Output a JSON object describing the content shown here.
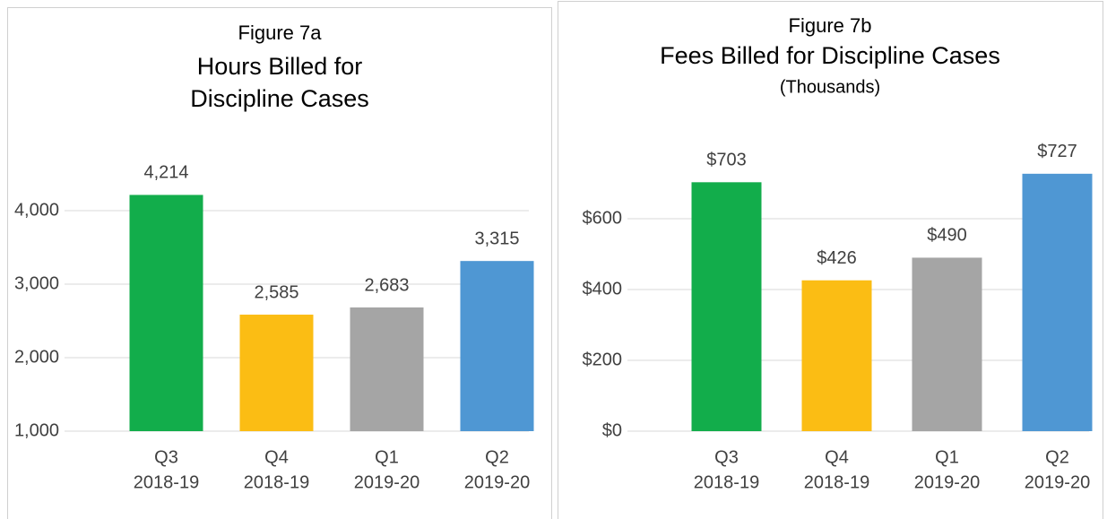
{
  "chart_data": [
    {
      "type": "bar",
      "title": "Figure 7a",
      "subtitle": [
        "Hours Billed for",
        "Discipline Cases"
      ],
      "categories": [
        [
          "Q3",
          "2018-19"
        ],
        [
          "Q4",
          "2018-19"
        ],
        [
          "Q1",
          "2019-20"
        ],
        [
          "Q2",
          "2019-20"
        ]
      ],
      "values": [
        4214,
        2585,
        2683,
        3315
      ],
      "value_labels": [
        "4,214",
        "2,585",
        "2,683",
        "3,315"
      ],
      "colors": [
        "#12ad4b",
        "#fbbd14",
        "#a5a5a5",
        "#4f97d3"
      ],
      "ylim": [
        1000,
        4500
      ],
      "yticks": [
        {
          "value": 1000,
          "label": "1,000"
        },
        {
          "value": 2000,
          "label": "2,000"
        },
        {
          "value": 3000,
          "label": "3,000"
        },
        {
          "value": 4000,
          "label": "4,000"
        }
      ],
      "grid": true
    },
    {
      "type": "bar",
      "title": "Figure 7b",
      "subtitle": [
        "Fees Billed for Discipline Cases"
      ],
      "note": "(Thousands)",
      "categories": [
        [
          "Q3",
          "2018-19"
        ],
        [
          "Q4",
          "2018-19"
        ],
        [
          "Q1",
          "2019-20"
        ],
        [
          "Q2",
          "2019-20"
        ]
      ],
      "values": [
        703,
        426,
        490,
        727
      ],
      "value_labels": [
        "$703",
        "$426",
        "$490",
        "$727"
      ],
      "colors": [
        "#12ad4b",
        "#fbbd14",
        "#a5a5a5",
        "#4f97d3"
      ],
      "ylim": [
        0,
        800
      ],
      "yticks": [
        {
          "value": 0,
          "label": "$0"
        },
        {
          "value": 200,
          "label": "$200"
        },
        {
          "value": 400,
          "label": "$400"
        },
        {
          "value": 600,
          "label": "$600"
        }
      ],
      "grid": true
    }
  ]
}
